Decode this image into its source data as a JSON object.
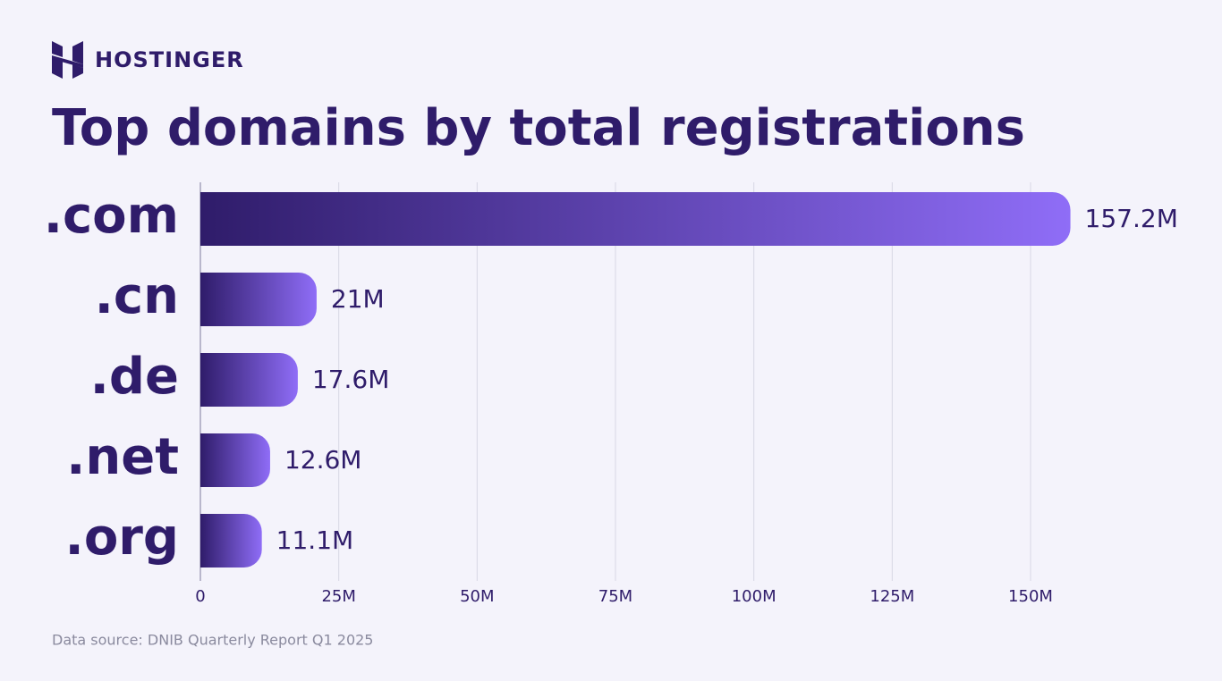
{
  "brand": "HOSTINGER",
  "chart_data": {
    "type": "hbar",
    "title": "Top domains by total registrations",
    "categories": [
      ".com",
      ".cn",
      ".de",
      ".net",
      ".org"
    ],
    "values": [
      157.2,
      21,
      17.6,
      12.6,
      11.1
    ],
    "value_labels": [
      "157.2M",
      "21M",
      "17.6M",
      "12.6M",
      "11.1M"
    ],
    "colors": [
      "#2f1c6a",
      "#8f6df7"
    ],
    "xlim": [
      0,
      160
    ],
    "xticks": [
      0,
      {
        "value": 25,
        "label": "25M"
      },
      {
        "value": 50,
        "label": "50M"
      },
      {
        "value": 75,
        "label": "75M"
      },
      {
        "value": 100,
        "label": "100M"
      },
      {
        "value": 125,
        "label": "125M"
      },
      {
        "value": 150,
        "label": "150M"
      }
    ],
    "grid": true,
    "source": "Data source: DNIB Quarterly Report Q1 2025"
  }
}
